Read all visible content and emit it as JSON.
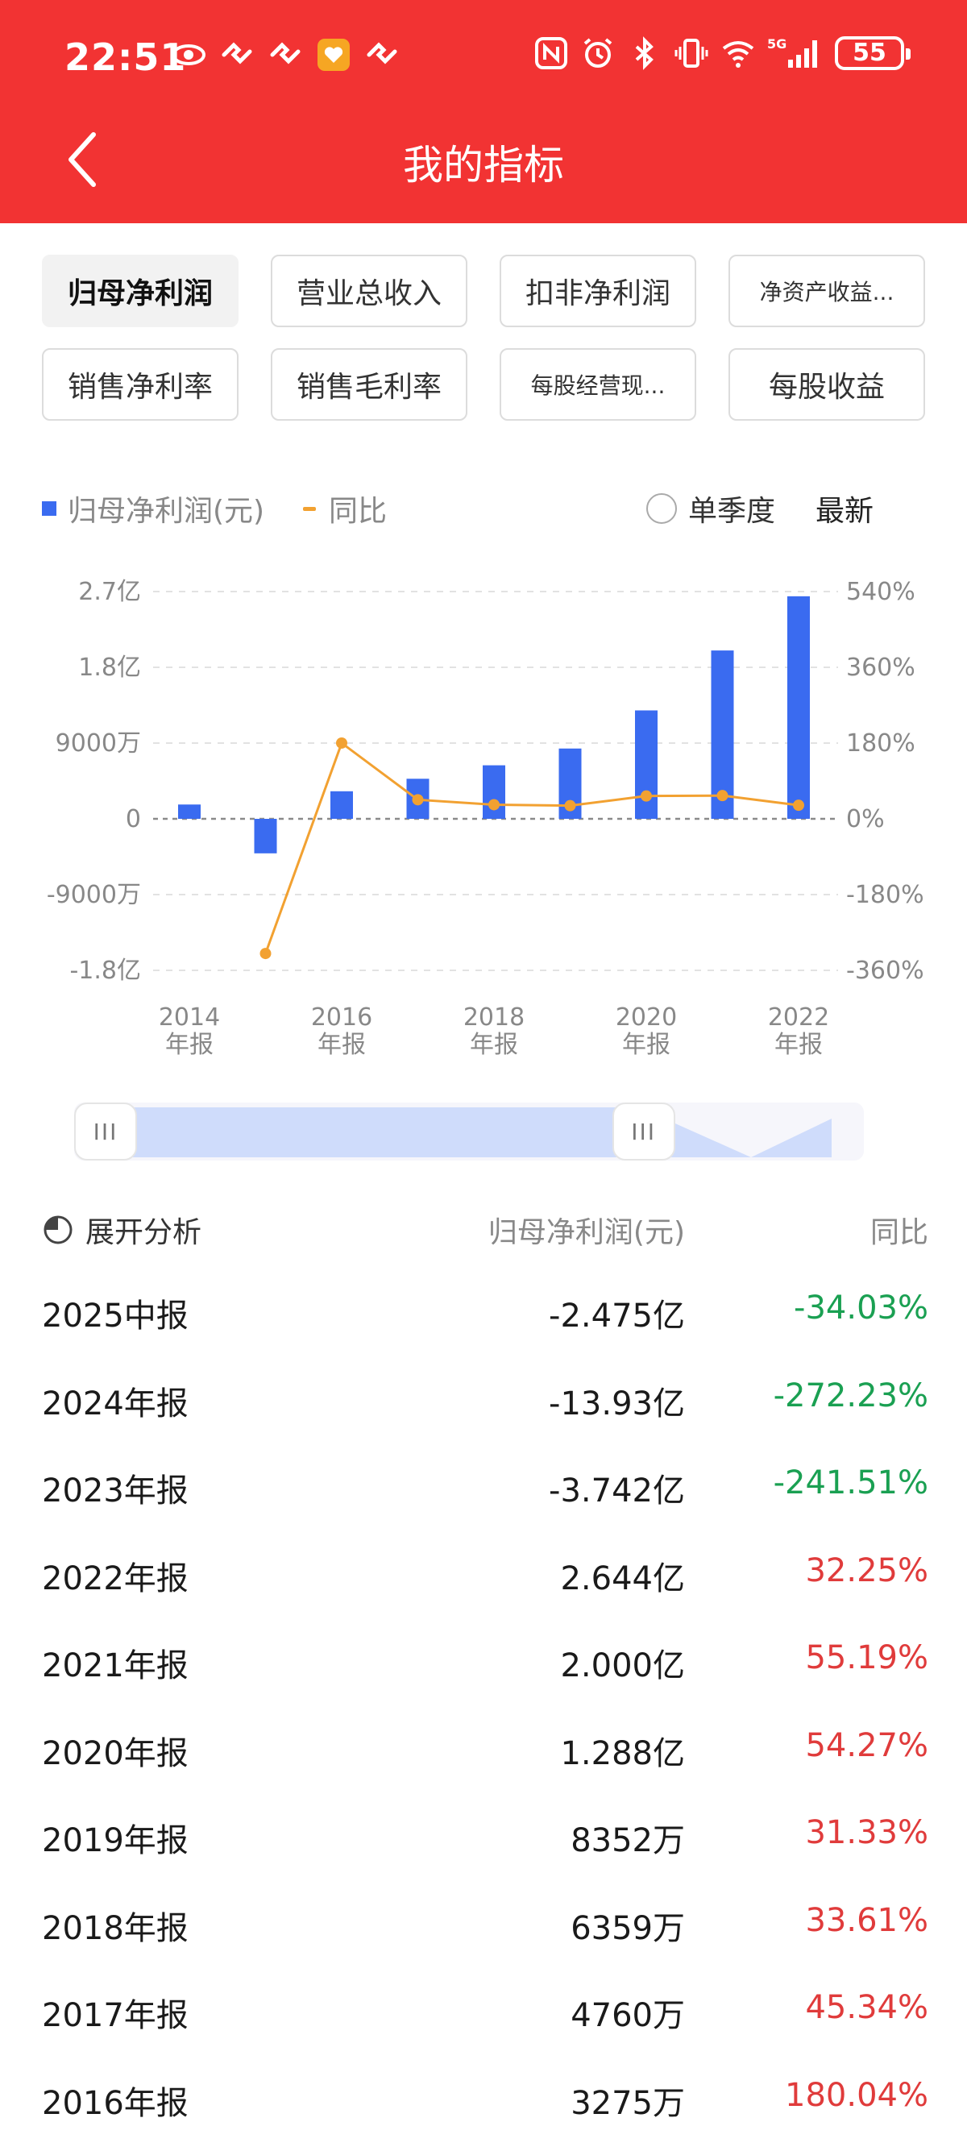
{
  "status_bar": {
    "time": "22:51",
    "battery": "55",
    "network": "5G",
    "left_icons": [
      "eye-icon",
      "app-notify-icon",
      "app-notify-icon",
      "shield-heart-icon",
      "app-notify-icon"
    ],
    "right_icons": [
      "nfc-icon",
      "alarm-icon",
      "bluetooth-icon",
      "vibrate-icon",
      "wifi-icon",
      "signal-icon",
      "battery-icon"
    ]
  },
  "header": {
    "title": "我的指标",
    "back_icon": "chevron-left-icon"
  },
  "chips": [
    {
      "label": "归母净利润",
      "active": true
    },
    {
      "label": "营业总收入",
      "active": false
    },
    {
      "label": "扣非净利润",
      "active": false
    },
    {
      "label": "净资产收益...",
      "active": false,
      "small": true
    },
    {
      "label": "销售净利率",
      "active": false
    },
    {
      "label": "销售毛利率",
      "active": false
    },
    {
      "label": "每股经营现...",
      "active": false,
      "small": true
    },
    {
      "label": "每股收益",
      "active": false
    }
  ],
  "legend": {
    "series_bar": "归母净利润(元)",
    "series_line": "同比",
    "single_quarter": "单季度",
    "latest": "最新"
  },
  "colors": {
    "header_red": "#f23333",
    "bar_blue": "#3a6bf0",
    "line_orange": "#f2a131",
    "down_green": "#1aa052",
    "up_red": "#e03b3b"
  },
  "chart_data": {
    "type": "bar",
    "categories": [
      "2014年报",
      "2015年报",
      "2016年报",
      "2017年报",
      "2018年报",
      "2019年报",
      "2020年报",
      "2021年报",
      "2022年报"
    ],
    "x_tick_labels": [
      {
        "year": "2014",
        "suffix": "年报"
      },
      {
        "year": "2016",
        "suffix": "年报"
      },
      {
        "year": "2018",
        "suffix": "年报"
      },
      {
        "year": "2020",
        "suffix": "年报"
      },
      {
        "year": "2022",
        "suffix": "年报"
      }
    ],
    "series": [
      {
        "name": "归母净利润(元)",
        "type": "bar",
        "axis": "left",
        "values": [
          17000000,
          -41000000,
          32750000,
          47600000,
          63590000,
          83520000,
          128800000,
          200000000,
          264400000
        ]
      },
      {
        "name": "同比",
        "type": "line",
        "axis": "right",
        "values": [
          null,
          -320,
          180.04,
          45.34,
          33.61,
          31.33,
          54.27,
          55.19,
          32.25
        ]
      }
    ],
    "y_left": {
      "range": [
        -180000000,
        270000000
      ],
      "ticks": [
        270000000,
        180000000,
        90000000,
        0,
        -90000000,
        -180000000
      ],
      "tick_labels": [
        "2.7亿",
        "1.8亿",
        "9000万",
        "0",
        "-9000万",
        "-1.8亿"
      ]
    },
    "y_right": {
      "range": [
        -360,
        540
      ],
      "ticks": [
        540,
        360,
        180,
        0,
        -180,
        -360
      ],
      "tick_labels": [
        "540%",
        "360%",
        "180%",
        "0%",
        "-180%",
        "-360%"
      ]
    },
    "grid": true,
    "legend_position": "top-left"
  },
  "range_slider": {
    "start": 0.0,
    "end": 0.72,
    "handle_glyph": "III"
  },
  "table": {
    "analysis_label": "展开分析",
    "value_header": "归母净利润(元)",
    "yoy_header": "同比",
    "rows": [
      {
        "period": "2025中报",
        "value": "-2.475亿",
        "yoy": "-34.03%",
        "dir": "neg"
      },
      {
        "period": "2024年报",
        "value": "-13.93亿",
        "yoy": "-272.23%",
        "dir": "neg"
      },
      {
        "period": "2023年报",
        "value": "-3.742亿",
        "yoy": "-241.51%",
        "dir": "neg"
      },
      {
        "period": "2022年报",
        "value": "2.644亿",
        "yoy": "32.25%",
        "dir": "pos"
      },
      {
        "period": "2021年报",
        "value": "2.000亿",
        "yoy": "55.19%",
        "dir": "pos"
      },
      {
        "period": "2020年报",
        "value": "1.288亿",
        "yoy": "54.27%",
        "dir": "pos"
      },
      {
        "period": "2019年报",
        "value": "8352万",
        "yoy": "31.33%",
        "dir": "pos"
      },
      {
        "period": "2018年报",
        "value": "6359万",
        "yoy": "33.61%",
        "dir": "pos"
      },
      {
        "period": "2017年报",
        "value": "4760万",
        "yoy": "45.34%",
        "dir": "pos"
      },
      {
        "period": "2016年报",
        "value": "3275万",
        "yoy": "180.04%",
        "dir": "pos"
      }
    ]
  }
}
